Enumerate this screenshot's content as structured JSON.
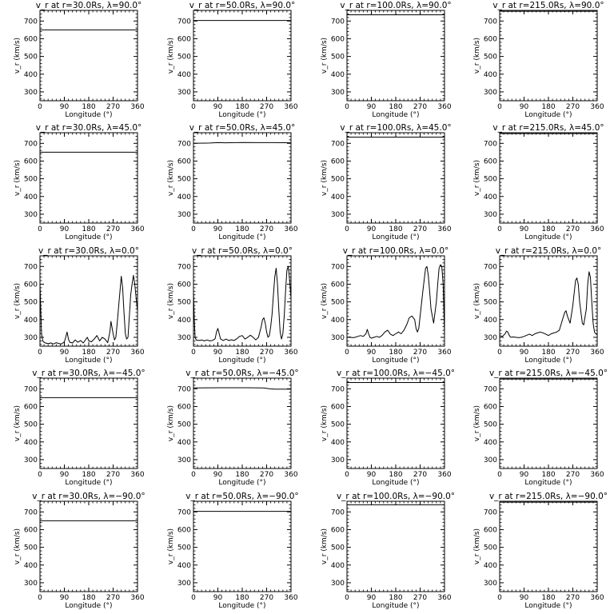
{
  "chart_data": [
    {
      "type": "line",
      "title": "v_r at r=30.0Rs, λ=90.0°",
      "xlabel": "Longitude (°)",
      "ylabel": "v_r (km/s)",
      "xlim": [
        0,
        360
      ],
      "ylim": [
        250,
        760
      ],
      "xticks": [
        0,
        90,
        180,
        270,
        360
      ],
      "yticks": [
        300,
        400,
        500,
        600,
        700
      ],
      "grid": false,
      "x": [
        0,
        360
      ],
      "y": [
        650,
        650
      ]
    },
    {
      "type": "line",
      "title": "v_r at r=50.0Rs, λ=90.0°",
      "xlabel": "Longitude (°)",
      "ylabel": "v_r (km/s)",
      "xlim": [
        0,
        360
      ],
      "ylim": [
        250,
        760
      ],
      "xticks": [
        0,
        90,
        180,
        270,
        360
      ],
      "yticks": [
        300,
        400,
        500,
        600,
        700
      ],
      "grid": false,
      "x": [
        0,
        360
      ],
      "y": [
        703,
        703
      ]
    },
    {
      "type": "line",
      "title": "v_r at r=100.0Rs, λ=90.0°",
      "xlabel": "Longitude (°)",
      "ylabel": "v_r (km/s)",
      "xlim": [
        0,
        360
      ],
      "ylim": [
        250,
        760
      ],
      "xticks": [
        0,
        90,
        180,
        270,
        360
      ],
      "yticks": [
        300,
        400,
        500,
        600,
        700
      ],
      "grid": false,
      "x": [
        0,
        360
      ],
      "y": [
        735,
        735
      ]
    },
    {
      "type": "line",
      "title": "v_r at r=215.0Rs, λ=90.0°",
      "xlabel": "Longitude (°)",
      "ylabel": "v_r (km/s)",
      "xlim": [
        0,
        360
      ],
      "ylim": [
        250,
        760
      ],
      "xticks": [
        0,
        90,
        180,
        270,
        360
      ],
      "yticks": [
        300,
        400,
        500,
        600,
        700
      ],
      "grid": false,
      "x": [
        0,
        360
      ],
      "y": [
        755,
        755
      ]
    },
    {
      "type": "line",
      "title": "v_r at r=30.0Rs, λ=45.0°",
      "xlabel": "Longitude (°)",
      "ylabel": "v_r (km/s)",
      "xlim": [
        0,
        360
      ],
      "ylim": [
        250,
        760
      ],
      "xticks": [
        0,
        90,
        180,
        270,
        360
      ],
      "yticks": [
        300,
        400,
        500,
        600,
        700
      ],
      "grid": false,
      "x": [
        0,
        360
      ],
      "y": [
        650,
        650
      ]
    },
    {
      "type": "line",
      "title": "v_r at r=50.0Rs, λ=45.0°",
      "xlabel": "Longitude (°)",
      "ylabel": "v_r (km/s)",
      "xlim": [
        0,
        360
      ],
      "ylim": [
        250,
        760
      ],
      "xticks": [
        0,
        90,
        180,
        270,
        360
      ],
      "yticks": [
        300,
        400,
        500,
        600,
        700
      ],
      "grid": false,
      "x": [
        0,
        60,
        90,
        120,
        180,
        240,
        300,
        360
      ],
      "y": [
        700,
        702,
        704,
        703,
        705,
        704,
        704,
        703
      ]
    },
    {
      "type": "line",
      "title": "v_r at r=100.0Rs, λ=45.0°",
      "xlabel": "Longitude (°)",
      "ylabel": "v_r (km/s)",
      "xlim": [
        0,
        360
      ],
      "ylim": [
        250,
        760
      ],
      "xticks": [
        0,
        90,
        180,
        270,
        360
      ],
      "yticks": [
        300,
        400,
        500,
        600,
        700
      ],
      "grid": false,
      "x": [
        0,
        360
      ],
      "y": [
        735,
        735
      ]
    },
    {
      "type": "line",
      "title": "v_r at r=215.0Rs, λ=45.0°",
      "xlabel": "Longitude (°)",
      "ylabel": "v_r (km/s)",
      "xlim": [
        0,
        360
      ],
      "ylim": [
        250,
        760
      ],
      "xticks": [
        0,
        90,
        180,
        270,
        360
      ],
      "yticks": [
        300,
        400,
        500,
        600,
        700
      ],
      "grid": false,
      "x": [
        0,
        360
      ],
      "y": [
        755,
        755
      ]
    },
    {
      "type": "line",
      "title": "v_r at r=30.0Rs, λ=0.0°",
      "xlabel": "Longitude (°)",
      "ylabel": "v_r (km/s)",
      "xlim": [
        0,
        360
      ],
      "ylim": [
        250,
        760
      ],
      "xticks": [
        0,
        90,
        180,
        270,
        360
      ],
      "yticks": [
        300,
        400,
        500,
        600,
        700
      ],
      "grid": false,
      "x": [
        0,
        3,
        6,
        10,
        15,
        20,
        30,
        40,
        50,
        60,
        70,
        80,
        90,
        95,
        100,
        105,
        110,
        120,
        130,
        140,
        150,
        160,
        170,
        175,
        180,
        190,
        200,
        210,
        220,
        230,
        240,
        250,
        258,
        262,
        270,
        275,
        280,
        285,
        290,
        300,
        305,
        310,
        315,
        320,
        325,
        330,
        335,
        340,
        345,
        350,
        355,
        360
      ],
      "y": [
        610,
        450,
        320,
        280,
        272,
        268,
        265,
        268,
        262,
        270,
        265,
        262,
        275,
        300,
        330,
        290,
        272,
        268,
        285,
        272,
        282,
        268,
        290,
        300,
        280,
        275,
        290,
        310,
        280,
        300,
        290,
        270,
        330,
        390,
        320,
        285,
        300,
        380,
        470,
        645,
        580,
        440,
        320,
        290,
        300,
        420,
        540,
        600,
        650,
        600,
        520,
        450
      ]
    },
    {
      "type": "line",
      "title": "v_r at r=50.0Rs, λ=0.0°",
      "xlabel": "Longitude (°)",
      "ylabel": "v_r (km/s)",
      "xlim": [
        0,
        360
      ],
      "ylim": [
        250,
        760
      ],
      "xticks": [
        0,
        90,
        180,
        270,
        360
      ],
      "yticks": [
        300,
        400,
        500,
        600,
        700
      ],
      "grid": false,
      "x": [
        0,
        3,
        6,
        10,
        20,
        30,
        40,
        50,
        60,
        70,
        80,
        85,
        90,
        95,
        100,
        110,
        120,
        130,
        140,
        150,
        160,
        170,
        180,
        190,
        200,
        210,
        220,
        230,
        240,
        250,
        255,
        260,
        265,
        270,
        275,
        280,
        285,
        290,
        295,
        300,
        305,
        310,
        315,
        320,
        325,
        330,
        335,
        340,
        345,
        350,
        355,
        360
      ],
      "y": [
        560,
        400,
        300,
        285,
        282,
        285,
        280,
        285,
        280,
        282,
        292,
        330,
        350,
        320,
        290,
        282,
        290,
        282,
        286,
        282,
        292,
        305,
        310,
        290,
        300,
        312,
        300,
        285,
        300,
        360,
        400,
        410,
        380,
        330,
        300,
        310,
        360,
        430,
        540,
        640,
        690,
        600,
        450,
        330,
        290,
        320,
        420,
        560,
        680,
        700,
        620,
        520
      ]
    },
    {
      "type": "line",
      "title": "v_r at r=100.0Rs, λ=0.0°",
      "xlabel": "Longitude (°)",
      "ylabel": "v_r (km/s)",
      "xlim": [
        0,
        360
      ],
      "ylim": [
        250,
        760
      ],
      "xticks": [
        0,
        90,
        180,
        270,
        360
      ],
      "yticks": [
        300,
        400,
        500,
        600,
        700
      ],
      "grid": false,
      "x": [
        0,
        10,
        20,
        30,
        40,
        50,
        60,
        70,
        75,
        80,
        85,
        90,
        100,
        110,
        120,
        130,
        140,
        150,
        155,
        160,
        170,
        180,
        190,
        200,
        210,
        220,
        230,
        240,
        250,
        255,
        260,
        265,
        270,
        280,
        290,
        295,
        300,
        305,
        310,
        320,
        330,
        335,
        340,
        345,
        350,
        355,
        360
      ],
      "y": [
        300,
        302,
        298,
        300,
        305,
        310,
        305,
        320,
        345,
        320,
        300,
        295,
        300,
        305,
        300,
        312,
        330,
        340,
        330,
        318,
        310,
        320,
        330,
        320,
        340,
        370,
        410,
        420,
        400,
        350,
        330,
        350,
        420,
        560,
        690,
        700,
        650,
        560,
        460,
        380,
        500,
        600,
        690,
        710,
        700,
        600,
        320
      ]
    },
    {
      "type": "line",
      "title": "v_r at r=215.0Rs, λ=0.0°",
      "xlabel": "Longitude (°)",
      "ylabel": "v_r (km/s)",
      "xlim": [
        0,
        360
      ],
      "ylim": [
        250,
        760
      ],
      "xticks": [
        0,
        90,
        180,
        270,
        360
      ],
      "yticks": [
        300,
        400,
        500,
        600,
        700
      ],
      "grid": false,
      "x": [
        0,
        10,
        20,
        25,
        30,
        35,
        40,
        50,
        60,
        70,
        80,
        90,
        100,
        110,
        120,
        130,
        140,
        150,
        160,
        170,
        180,
        190,
        200,
        210,
        220,
        230,
        240,
        245,
        250,
        255,
        260,
        270,
        280,
        285,
        290,
        295,
        300,
        305,
        310,
        320,
        325,
        330,
        335,
        340,
        345,
        350,
        355,
        360
      ],
      "y": [
        310,
        305,
        320,
        335,
        330,
        312,
        300,
        302,
        300,
        298,
        300,
        305,
        312,
        318,
        310,
        320,
        325,
        330,
        325,
        318,
        310,
        320,
        325,
        330,
        340,
        390,
        440,
        450,
        420,
        400,
        380,
        480,
        620,
        635,
        600,
        500,
        440,
        380,
        370,
        460,
        600,
        670,
        640,
        500,
        380,
        330,
        320,
        315
      ]
    },
    {
      "type": "line",
      "title": "v_r at r=30.0Rs, λ=−45.0°",
      "xlabel": "Longitude (°)",
      "ylabel": "v_r (km/s)",
      "xlim": [
        0,
        360
      ],
      "ylim": [
        250,
        760
      ],
      "xticks": [
        0,
        90,
        180,
        270,
        360
      ],
      "yticks": [
        300,
        400,
        500,
        600,
        700
      ],
      "grid": false,
      "x": [
        0,
        360
      ],
      "y": [
        650,
        650
      ]
    },
    {
      "type": "line",
      "title": "v_r at r=50.0Rs, λ=−45.0°",
      "xlabel": "Longitude (°)",
      "ylabel": "v_r (km/s)",
      "xlim": [
        0,
        360
      ],
      "ylim": [
        250,
        760
      ],
      "xticks": [
        0,
        90,
        180,
        270,
        360
      ],
      "yticks": [
        300,
        400,
        500,
        600,
        700
      ],
      "grid": false,
      "x": [
        0,
        100,
        200,
        260,
        280,
        300,
        360
      ],
      "y": [
        705,
        706,
        706,
        705,
        700,
        698,
        698
      ]
    },
    {
      "type": "line",
      "title": "v_r at r=100.0Rs, λ=−45.0°",
      "xlabel": "Longitude (°)",
      "ylabel": "v_r (km/s)",
      "xlim": [
        0,
        360
      ],
      "ylim": [
        250,
        760
      ],
      "xticks": [
        0,
        90,
        180,
        270,
        360
      ],
      "yticks": [
        300,
        400,
        500,
        600,
        700
      ],
      "grid": false,
      "x": [
        0,
        360
      ],
      "y": [
        735,
        735
      ]
    },
    {
      "type": "line",
      "title": "v_r at r=215.0Rs, λ=−45.0°",
      "xlabel": "Longitude (°)",
      "ylabel": "v_r (km/s)",
      "xlim": [
        0,
        360
      ],
      "ylim": [
        250,
        760
      ],
      "xticks": [
        0,
        90,
        180,
        270,
        360
      ],
      "yticks": [
        300,
        400,
        500,
        600,
        700
      ],
      "grid": false,
      "x": [
        0,
        360
      ],
      "y": [
        755,
        755
      ]
    },
    {
      "type": "line",
      "title": "v_r at r=30.0Rs, λ=−90.0°",
      "xlabel": "Longitude (°)",
      "ylabel": "v_r (km/s)",
      "xlim": [
        0,
        360
      ],
      "ylim": [
        250,
        760
      ],
      "xticks": [
        0,
        90,
        180,
        270,
        360
      ],
      "yticks": [
        300,
        400,
        500,
        600,
        700
      ],
      "grid": false,
      "x": [
        0,
        360
      ],
      "y": [
        650,
        650
      ]
    },
    {
      "type": "line",
      "title": "v_r at r=50.0Rs, λ=−90.0°",
      "xlabel": "Longitude (°)",
      "ylabel": "v_r (km/s)",
      "xlim": [
        0,
        360
      ],
      "ylim": [
        250,
        760
      ],
      "xticks": [
        0,
        90,
        180,
        270,
        360
      ],
      "yticks": [
        300,
        400,
        500,
        600,
        700
      ],
      "grid": false,
      "x": [
        0,
        360
      ],
      "y": [
        703,
        703
      ]
    },
    {
      "type": "line",
      "title": "v_r at r=100.0Rs, λ=−90.0°",
      "xlabel": "Longitude (°)",
      "ylabel": "v_r (km/s)",
      "xlim": [
        0,
        360
      ],
      "ylim": [
        250,
        760
      ],
      "xticks": [
        0,
        90,
        180,
        270,
        360
      ],
      "yticks": [
        300,
        400,
        500,
        600,
        700
      ],
      "grid": false,
      "x": [
        0,
        360
      ],
      "y": [
        740,
        740
      ]
    },
    {
      "type": "line",
      "title": "v_r at r=215.0Rs, λ=−90.0°",
      "xlabel": "Longitude (°)",
      "ylabel": "v_r (km/s)",
      "xlim": [
        0,
        360
      ],
      "ylim": [
        250,
        760
      ],
      "xticks": [
        0,
        90,
        180,
        270,
        360
      ],
      "yticks": [
        300,
        400,
        500,
        600,
        700
      ],
      "grid": false,
      "x": [
        0,
        360
      ],
      "y": [
        755,
        755
      ]
    }
  ]
}
